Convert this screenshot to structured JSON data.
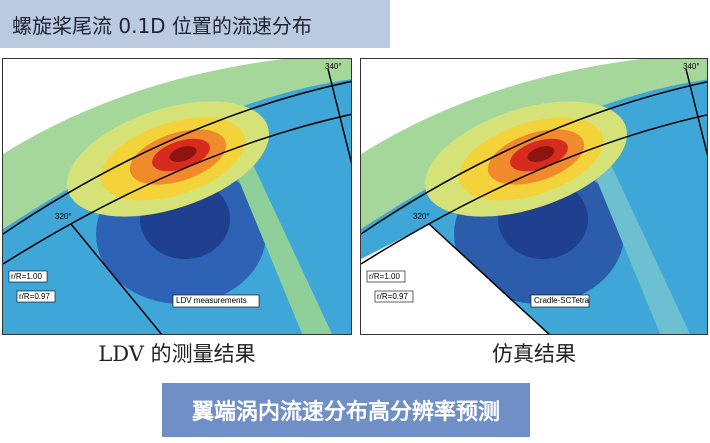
{
  "header": {
    "title": "螺旋桨尾流 0.1D 位置的流速分布"
  },
  "panels": [
    {
      "angle_top": "340°",
      "angle_left": "320°",
      "r1": "r/R=1.00",
      "r2": "r/R=0.97",
      "label": "LDV measurements",
      "caption": "LDV 的测量结果"
    },
    {
      "angle_top": "340°",
      "angle_left": "320°",
      "r1": "r/R=1.00",
      "r2": "r/R=0.97",
      "label": "Cradle-SCTetra",
      "caption": "仿真结果"
    }
  ],
  "footer": {
    "banner": "翼端涡内流速分布高分辨率预测"
  }
}
